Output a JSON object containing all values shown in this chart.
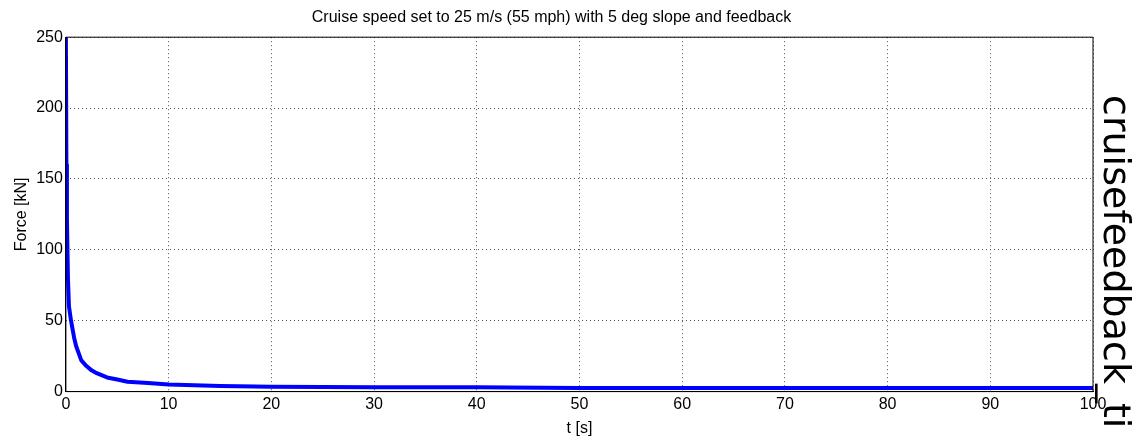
{
  "chart_data": {
    "type": "line",
    "title": "Cruise speed set to 25 m/s (55 mph) with 5 deg slope and feedback",
    "xlabel": "t [s]",
    "ylabel": "Force [kN]",
    "x": [
      0,
      0.05,
      0.1,
      0.2,
      0.3,
      0.5,
      0.8,
      1,
      1.5,
      2,
      2.5,
      3,
      4,
      5,
      6,
      8,
      10,
      15,
      20,
      30,
      40,
      50,
      60,
      70,
      80,
      90,
      100
    ],
    "series": [
      {
        "color": "#0000ff",
        "values": [
          250,
          160,
          122,
          80,
          60,
          50,
          38,
          32,
          22,
          18,
          15,
          13,
          10,
          8.5,
          7,
          6,
          5,
          4,
          3.5,
          3,
          3,
          2.5,
          2.5,
          2.5,
          2.5,
          2.5,
          2.5
        ]
      }
    ],
    "xlim": [
      0,
      100
    ],
    "xticks": [
      0,
      10,
      20,
      30,
      40,
      50,
      60,
      70,
      80,
      90,
      100
    ],
    "ylim": [
      0,
      250
    ],
    "yticks": [
      0,
      50,
      100,
      150,
      200,
      250
    ],
    "grid": true,
    "legend": false,
    "marker": "none",
    "line_style": "solid",
    "annotations": [
      "cruisefeedback_ti"
    ]
  }
}
